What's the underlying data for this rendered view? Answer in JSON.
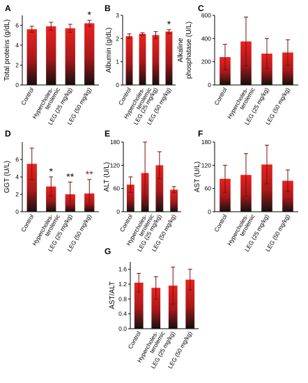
{
  "colors": {
    "bar_top": "#e8231f",
    "bar_mid": "#a8181a",
    "bar_bottom": "#141010",
    "error_bar": "#7a0d0d",
    "axis": "#000000",
    "star": "#000000",
    "star_alt": "#8b1a2e"
  },
  "chart_data": [
    {
      "type": "bar",
      "panel": "A",
      "ylabel": "Total proteins (g/dL)",
      "ylim": [
        0,
        7
      ],
      "yticks": [
        0,
        2,
        4,
        6
      ],
      "categories": [
        "Control",
        "Hypercholes-\nterolemic",
        "LEG (25 mg/kg)",
        "LEG (50 mg/kg)"
      ],
      "values": [
        5.6,
        5.9,
        5.7,
        6.2
      ],
      "errors": [
        0.3,
        0.4,
        0.4,
        0.3
      ],
      "annotations": [
        "",
        "",
        "",
        "*"
      ]
    },
    {
      "type": "bar",
      "panel": "B",
      "ylabel": "Albumin (g/dL)",
      "ylim": [
        0,
        3
      ],
      "yticks": [
        0,
        1,
        2,
        3
      ],
      "categories": [
        "Control",
        "Hypercholes-\nterolemic",
        "LEG (25 mg/kg)",
        "LEG (50 mg/kg)"
      ],
      "values": [
        2.1,
        2.2,
        2.15,
        2.3
      ],
      "errors": [
        0.1,
        0.05,
        0.15,
        0.08
      ],
      "annotations": [
        "",
        "",
        "",
        "*"
      ]
    },
    {
      "type": "bar",
      "panel": "C",
      "ylabel": "Alkaline\nphosphatase (U/L)",
      "ylim": [
        0,
        600
      ],
      "yticks": [
        0,
        200,
        400,
        600
      ],
      "categories": [
        "Control",
        "Hypercholes-\nterolemic",
        "LEG (25 mg/kg)",
        "LEG (50 mg/kg)"
      ],
      "values": [
        240,
        375,
        270,
        280
      ],
      "errors": [
        110,
        210,
        130,
        110
      ],
      "annotations": [
        "",
        "",
        "",
        ""
      ]
    },
    {
      "type": "bar",
      "panel": "D",
      "ylabel": "GGT (U/L)",
      "ylim": [
        0,
        8
      ],
      "yticks": [
        0,
        2,
        4,
        6
      ],
      "categories": [
        "Control",
        "Hypercholes-\nterolemic",
        "LEG (25 mg/kg)",
        "LEG (50 mg/kg)"
      ],
      "values": [
        5.5,
        2.9,
        2.0,
        2.1
      ],
      "errors": [
        1.8,
        1.1,
        1.4,
        1.6
      ],
      "annotations": [
        "",
        "*",
        "**",
        "**"
      ]
    },
    {
      "type": "bar",
      "panel": "E",
      "ylabel": "ALT (U/L)",
      "ylim": [
        0,
        180
      ],
      "yticks": [
        0,
        60,
        120,
        180
      ],
      "categories": [
        "Control",
        "Hypercholes-\nterolemic",
        "LEG (25 mg/kg)",
        "LEG (50 mg/kg)"
      ],
      "values": [
        70,
        100,
        120,
        57
      ],
      "errors": [
        20,
        80,
        35,
        8
      ],
      "annotations": [
        "",
        "",
        "",
        ""
      ]
    },
    {
      "type": "bar",
      "panel": "F",
      "ylabel": "AST (U/L)",
      "ylim": [
        0,
        180
      ],
      "yticks": [
        0,
        60,
        120,
        180
      ],
      "categories": [
        "Control",
        "Hypercholes-\nterolemic",
        "LEG (25 mg/kg)",
        "LEG (50 mg/kg)"
      ],
      "values": [
        85,
        95,
        122,
        80
      ],
      "errors": [
        35,
        55,
        50,
        28
      ],
      "annotations": [
        "",
        "",
        "",
        ""
      ]
    },
    {
      "type": "bar",
      "panel": "G",
      "ylabel": "AST/ALT",
      "ylim": [
        0,
        1.8
      ],
      "yticks": [
        0.0,
        0.4,
        0.8,
        1.2,
        1.6
      ],
      "ytick_labels": [
        "0.0",
        "0.4",
        "0.8",
        "1.2",
        "1.6"
      ],
      "categories": [
        "Control",
        "Hypercholes-\nterolemic",
        "LEG (25 mg/kg)",
        "LEG (50 mg/kg)"
      ],
      "values": [
        1.24,
        1.1,
        1.16,
        1.32
      ],
      "errors": [
        0.25,
        0.3,
        0.5,
        0.28
      ],
      "annotations": [
        "",
        "",
        "",
        ""
      ]
    }
  ]
}
